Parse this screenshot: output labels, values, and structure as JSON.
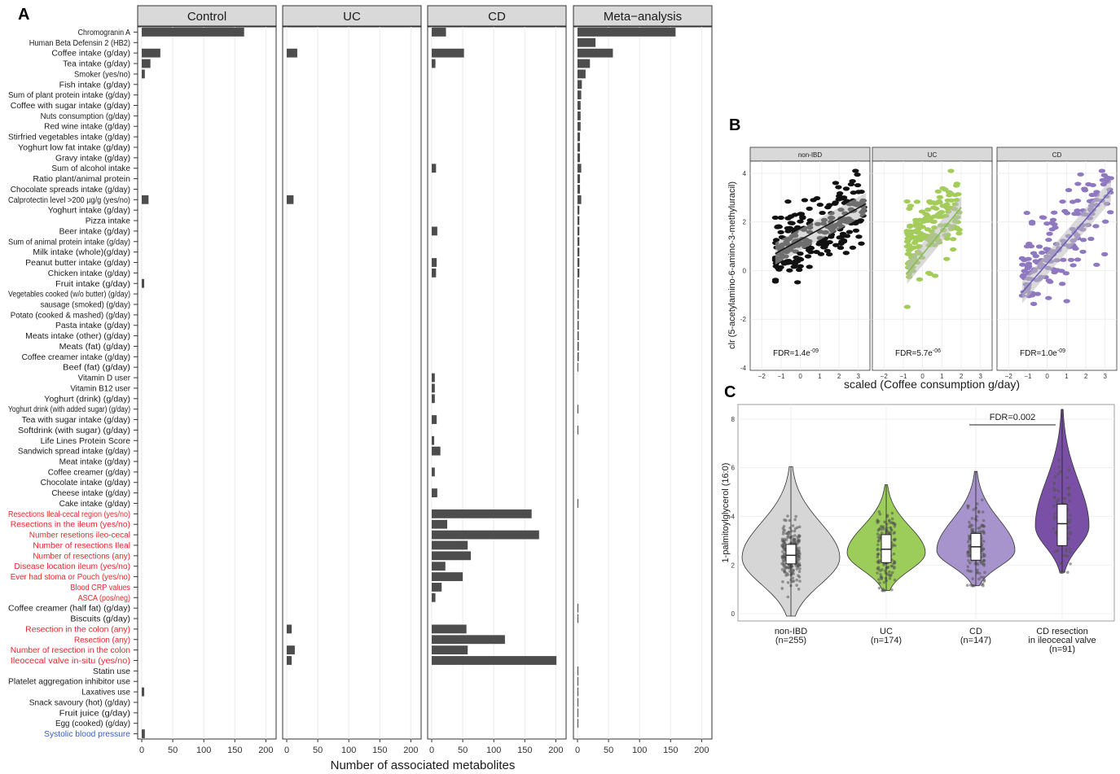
{
  "panel_labels": {
    "a": "A",
    "b": "B",
    "c": "C"
  },
  "colors": {
    "bar": "#4d4d4d",
    "strip": "#d9d9d9",
    "red_label": "#e8262b",
    "blue_label": "#3a5bbf",
    "grid": "#ebebeb",
    "nonibd_point": "#111111",
    "uc_point": "#a3cc5a",
    "cd_point": "#8f78c0",
    "violin_nonibd": "#d6d6d6",
    "violin_uc": "#9ccd5a",
    "violin_cd": "#a894cc",
    "violin_resection": "#7a4fa6"
  },
  "chart_data": [
    {
      "id": "A",
      "type": "bar",
      "orientation": "horizontal",
      "xlabel": "Number of associated metabolites",
      "xlim": [
        0,
        210
      ],
      "xticks": [
        0,
        50,
        100,
        150,
        200
      ],
      "panels": [
        "Control",
        "UC",
        "CD",
        "Meta−analysis"
      ],
      "categories": [
        "Chromogranin A",
        "Human Beta Defensin 2 (HB2)",
        "Coffee intake (g/day)",
        "Tea intake (g/day)",
        "Smoker (yes/no)",
        "Fish intake (g/day)",
        "Sum of plant protein intake (g/day)",
        "Coffee with sugar intake (g/day)",
        "Nuts consumption (g/day)",
        "Red wine intake (g/day)",
        "Stirfried vegetables intake (g/day)",
        "Yoghurt low fat intake (g/day)",
        "Gravy intake (g/day)",
        "Sum of alcohol intake",
        "Ratio plant/animal protein",
        "Chocolate spreads intake (g/day)",
        "Calprotectin level >200 µg/g  (yes/no)",
        "Yoghurt intake (g/day)",
        "Pizza intake",
        "Beer intake (g/day)",
        "Sum of animal protein intake (g/day)",
        "Milk intake (whole)(g/day)",
        "Peanut butter intake (g/day)",
        "Chicken intake (g/day)",
        "Fruit intake (g/day)",
        "Vegetables cooked (w/o butter) (g/day)",
        "sausage (smoked) (g/day)",
        "Potato (cooked & mashed) (g/day)",
        "Pasta intake (g/day)",
        "Meats intake (other) (g/day)",
        "Meats (fat) (g/day)",
        "Coffee creamer intake (g/day)",
        "Beef (fat) (g/day)",
        "Vitamin D user",
        "Vitamin B12 user",
        "Yoghurt (drink) (g/day)",
        "Yoghurt drink (with added sugar) (g/day)",
        "Tea with sugar intake (g/day)",
        "Softdrink (with sugar) (g/day)",
        "Life Lines Protein Score",
        "Sandwich spread intake (g/day)",
        "Meat intake (g/day)",
        "Coffee creamer (g/day)",
        "Chocolate intake (g/day)",
        "Cheese intake (g/day)",
        "Cake intake (g/day)",
        "Resections Ileal-cecal region (yes/no)",
        "Resections in the ileum (yes/no)",
        "Number resetions ileo-cecal",
        "Number of resections Ileal",
        "Number of resections (any)",
        "Disease location ileum (yes/no)",
        "Ever had stoma or Pouch (yes/no)",
        "Blood CRP values",
        "ASCA (pos/neg)",
        "Coffee creamer (half fat) (g/day)",
        "Biscuits (g/day)",
        "Resection in the colon (any)",
        "Resection (any)",
        "Number of resection in the colon",
        "Ileocecal valve in-situ (yes/no)",
        "Statin use",
        "Platelet aggregation inhibitor use",
        "Laxatives use",
        "Snack savoury (hot) (g/day)",
        "Fruit juice (g/day)",
        "Egg (cooked) (g/day)",
        "Systolic blood pressure"
      ],
      "label_colors": [
        "k",
        "k",
        "k",
        "k",
        "k",
        "k",
        "k",
        "k",
        "k",
        "k",
        "k",
        "k",
        "k",
        "k",
        "k",
        "k",
        "k",
        "k",
        "k",
        "k",
        "k",
        "k",
        "k",
        "k",
        "k",
        "k",
        "k",
        "k",
        "k",
        "k",
        "k",
        "k",
        "k",
        "k",
        "k",
        "k",
        "k",
        "k",
        "k",
        "k",
        "k",
        "k",
        "k",
        "k",
        "k",
        "k",
        "r",
        "r",
        "r",
        "r",
        "r",
        "r",
        "r",
        "r",
        "r",
        "k",
        "k",
        "r",
        "r",
        "r",
        "r",
        "k",
        "k",
        "k",
        "k",
        "k",
        "k",
        "b"
      ],
      "series": [
        {
          "name": "Control",
          "values": [
            165,
            0,
            30,
            14,
            5,
            0,
            0,
            0,
            0,
            0,
            0,
            0,
            0,
            0,
            0,
            0,
            11,
            0,
            0,
            0,
            0,
            0,
            0,
            0,
            4,
            0,
            0,
            0,
            0,
            0,
            0,
            0,
            0,
            0,
            0,
            0,
            0,
            0,
            0,
            0,
            0,
            0,
            0,
            0,
            0,
            0,
            0,
            0,
            0,
            0,
            0,
            0,
            0,
            0,
            0,
            0,
            0,
            0,
            0,
            0,
            0,
            0,
            0,
            4,
            0,
            0,
            0,
            5
          ]
        },
        {
          "name": "UC",
          "values": [
            0,
            0,
            17,
            0,
            0,
            0,
            0,
            0,
            0,
            0,
            0,
            0,
            0,
            0,
            0,
            0,
            11,
            0,
            0,
            0,
            0,
            0,
            0,
            0,
            0,
            0,
            0,
            0,
            0,
            0,
            0,
            0,
            0,
            0,
            0,
            0,
            0,
            0,
            0,
            0,
            0,
            0,
            0,
            0,
            0,
            0,
            0,
            0,
            0,
            0,
            0,
            0,
            0,
            0,
            0,
            0,
            0,
            8,
            0,
            13,
            8,
            0,
            0,
            0,
            0,
            0,
            0,
            0
          ]
        },
        {
          "name": "CD",
          "values": [
            23,
            0,
            52,
            6,
            0,
            0,
            0,
            0,
            0,
            0,
            0,
            0,
            0,
            7,
            0,
            0,
            0,
            0,
            0,
            9,
            0,
            0,
            8,
            7,
            0,
            0,
            0,
            0,
            0,
            0,
            0,
            0,
            0,
            5,
            5,
            5,
            0,
            8,
            0,
            4,
            14,
            0,
            5,
            0,
            9,
            0,
            161,
            25,
            173,
            58,
            63,
            22,
            50,
            16,
            6,
            0,
            0,
            56,
            118,
            58,
            201,
            0,
            0,
            0,
            0,
            0,
            0,
            0
          ]
        },
        {
          "name": "Meta−analysis",
          "values": [
            158,
            29,
            57,
            20,
            13,
            7,
            6,
            5,
            5,
            5,
            4,
            4,
            4,
            6,
            4,
            4,
            6,
            3,
            3,
            3,
            3,
            3,
            3,
            3,
            2,
            2,
            2,
            2,
            2,
            2,
            2,
            2,
            1,
            0,
            0,
            0,
            1,
            0,
            1,
            0,
            0,
            0,
            0,
            0,
            0,
            1,
            0,
            0,
            0,
            0,
            0,
            0,
            0,
            0,
            0,
            1,
            1,
            0,
            0,
            0,
            0,
            1,
            1,
            1,
            1,
            1,
            1,
            0
          ]
        }
      ]
    },
    {
      "id": "B",
      "type": "scatter",
      "xlabel": "scaled (Coffee consumption g/day)",
      "ylabel": "clr  (5-acetylamino-6-amino-3-methyluracil)",
      "xlim": [
        -2.6,
        3.6
      ],
      "ylim": [
        -4.1,
        4.5
      ],
      "xticks": [
        -2,
        -1,
        0,
        1,
        2,
        3
      ],
      "yticks": [
        -4,
        -2,
        0,
        2,
        4
      ],
      "panels": [
        {
          "name": "non-IBD",
          "fdr_base": "FDR=1.4e",
          "fdr_exp": "-09",
          "fit": {
            "x": [
              -1.3,
              3.4
            ],
            "y": [
              0.7,
              2.75
            ]
          },
          "x_range": [
            -1.3,
            3.3
          ],
          "y_center": 1.5,
          "slope": 0.45,
          "spread": 1.0,
          "n": 230
        },
        {
          "name": "UC",
          "fdr_base": "FDR=5.7e",
          "fdr_exp": "-06",
          "fit": {
            "x": [
              -0.8,
              2.0
            ],
            "y": [
              -0.1,
              2.6
            ]
          },
          "x_range": [
            -0.8,
            2.0
          ],
          "y_center": 1.6,
          "slope": 0.6,
          "spread": 1.0,
          "n": 170
        },
        {
          "name": "CD",
          "fdr_base": "FDR=1.0e",
          "fdr_exp": "-09",
          "fit": {
            "x": [
              -1.3,
              3.3
            ],
            "y": [
              -0.9,
              3.3
            ]
          },
          "x_range": [
            -1.3,
            3.3
          ],
          "y_center": 0.9,
          "slope": 0.85,
          "spread": 1.3,
          "n": 170
        }
      ]
    },
    {
      "id": "C",
      "type": "violin",
      "ylabel": "1-palmitoylglycerol (16:0)",
      "ylim": [
        -0.3,
        8.6
      ],
      "yticks": [
        0,
        2,
        4,
        6,
        8
      ],
      "annotation": "FDR=0.002",
      "groups": [
        {
          "label": "non-IBD",
          "n_label": "(n=255)",
          "min": -0.1,
          "q1": 2.05,
          "median": 2.4,
          "q3": 2.85,
          "max": 6.05,
          "peak": 2.3,
          "width": 1.0,
          "n": 255
        },
        {
          "label": "UC",
          "n_label": "(n=174)",
          "min": 0.95,
          "q1": 2.1,
          "median": 2.65,
          "q3": 3.25,
          "max": 5.3,
          "peak": 2.5,
          "width": 0.8,
          "n": 174
        },
        {
          "label": "CD",
          "n_label": "(n=147)",
          "min": 1.15,
          "q1": 2.2,
          "median": 2.75,
          "q3": 3.3,
          "max": 5.85,
          "peak": 2.6,
          "width": 0.8,
          "n": 147
        },
        {
          "label": "CD resection\nin ileocecal valve",
          "n_label": "(n=91)",
          "min": 1.7,
          "q1": 2.8,
          "median": 3.7,
          "q3": 4.5,
          "max": 8.4,
          "peak": 3.6,
          "width": 0.55,
          "n": 91
        }
      ]
    }
  ]
}
